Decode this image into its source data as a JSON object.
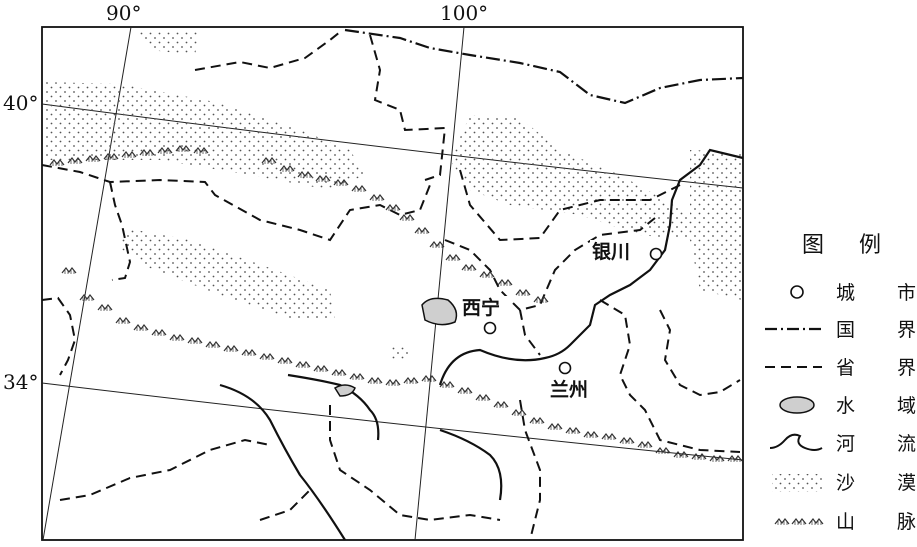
{
  "map": {
    "lon_labels": [
      "90°",
      "100°"
    ],
    "lat_labels": [
      "40°",
      "34°"
    ],
    "cities": [
      {
        "name": "银川"
      },
      {
        "name": "西宁"
      },
      {
        "name": "兰州"
      }
    ]
  },
  "legend": {
    "title": "图  例",
    "items": [
      {
        "label": "城  市",
        "icon": "city-circle-icon"
      },
      {
        "label": "国  界",
        "icon": "national-border-icon"
      },
      {
        "label": "省  界",
        "icon": "provincial-border-icon"
      },
      {
        "label": "水  域",
        "icon": "water-body-icon"
      },
      {
        "label": "河  流",
        "icon": "river-icon"
      },
      {
        "label": "沙  漠",
        "icon": "desert-dots-icon"
      },
      {
        "label": "山  脉",
        "icon": "mountain-range-icon"
      }
    ]
  }
}
